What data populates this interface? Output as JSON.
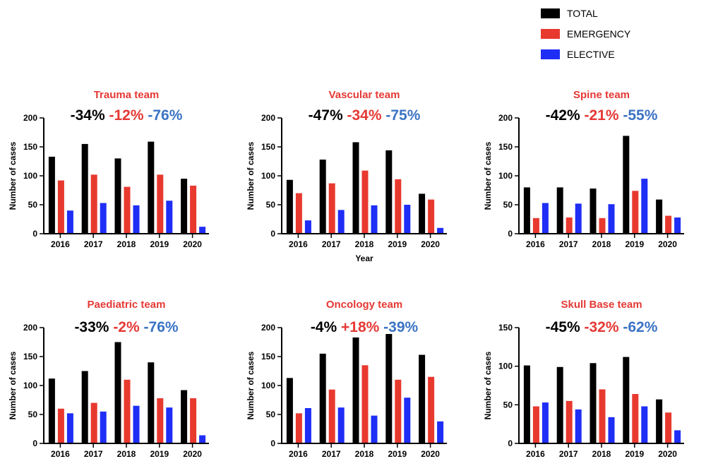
{
  "colors": {
    "total": "#000000",
    "emergency": "#e8392f",
    "elective": "#1f2ef5",
    "title": "#e53935",
    "pct_total": "#000000",
    "pct_emergency": "#e53935",
    "pct_elective": "#3b73c4"
  },
  "legend": {
    "items": [
      {
        "label": "TOTAL",
        "color": "#000000"
      },
      {
        "label": "EMERGENCY",
        "color": "#e8392f"
      },
      {
        "label": "ELECTIVE",
        "color": "#1f2ef5"
      }
    ],
    "placement": "top-right"
  },
  "chart_data": [
    {
      "type": "bar",
      "title": "Trauma team",
      "changes": [
        "-34%",
        "-12%",
        "-76%"
      ],
      "categories": [
        "2016",
        "2017",
        "2018",
        "2019",
        "2020"
      ],
      "series": [
        {
          "name": "TOTAL",
          "values": [
            133,
            155,
            130,
            159,
            95
          ]
        },
        {
          "name": "EMERGENCY",
          "values": [
            92,
            102,
            81,
            102,
            83
          ]
        },
        {
          "name": "ELECTIVE",
          "values": [
            40,
            53,
            49,
            57,
            12
          ]
        }
      ],
      "ylabel": "Number of cases",
      "xlabel": "",
      "ylim": [
        0,
        200
      ],
      "yticks": [
        0,
        50,
        100,
        150,
        200
      ]
    },
    {
      "type": "bar",
      "title": "Vascular team",
      "changes": [
        "-47%",
        "-34%",
        "-75%"
      ],
      "categories": [
        "2016",
        "2017",
        "2018",
        "2019",
        "2020"
      ],
      "series": [
        {
          "name": "TOTAL",
          "values": [
            93,
            128,
            158,
            144,
            69
          ]
        },
        {
          "name": "EMERGENCY",
          "values": [
            70,
            87,
            109,
            94,
            59
          ]
        },
        {
          "name": "ELECTIVE",
          "values": [
            23,
            41,
            49,
            50,
            10
          ]
        }
      ],
      "ylabel": "Number of cases",
      "xlabel": "Year",
      "ylim": [
        0,
        200
      ],
      "yticks": [
        0,
        50,
        100,
        150,
        200
      ]
    },
    {
      "type": "bar",
      "title": "Spine team",
      "changes": [
        "-42%",
        "-21%",
        "-55%"
      ],
      "categories": [
        "2016",
        "2017",
        "2018",
        "2019",
        "2020"
      ],
      "series": [
        {
          "name": "TOTAL",
          "values": [
            80,
            80,
            78,
            169,
            59
          ]
        },
        {
          "name": "EMERGENCY",
          "values": [
            27,
            28,
            27,
            74,
            31
          ]
        },
        {
          "name": "ELECTIVE",
          "values": [
            53,
            52,
            51,
            95,
            28
          ]
        }
      ],
      "ylabel": "Number of cases",
      "xlabel": "",
      "ylim": [
        0,
        200
      ],
      "yticks": [
        0,
        50,
        100,
        150,
        200
      ]
    },
    {
      "type": "bar",
      "title": "Paediatric team",
      "changes": [
        "-33%",
        "-2%",
        "-76%"
      ],
      "categories": [
        "2016",
        "2017",
        "2018",
        "2019",
        "2020"
      ],
      "series": [
        {
          "name": "TOTAL",
          "values": [
            112,
            125,
            175,
            140,
            92
          ]
        },
        {
          "name": "EMERGENCY",
          "values": [
            60,
            70,
            110,
            78,
            78
          ]
        },
        {
          "name": "ELECTIVE",
          "values": [
            52,
            55,
            65,
            62,
            14
          ]
        }
      ],
      "ylabel": "Number of cases",
      "xlabel": "",
      "ylim": [
        0,
        200
      ],
      "yticks": [
        0,
        50,
        100,
        150,
        200
      ]
    },
    {
      "type": "bar",
      "title": "Oncology team",
      "changes": [
        "-4%",
        "+18%",
        "-39%"
      ],
      "categories": [
        "2016",
        "2017",
        "2018",
        "2019",
        "2020"
      ],
      "series": [
        {
          "name": "TOTAL",
          "values": [
            113,
            155,
            183,
            189,
            153
          ]
        },
        {
          "name": "EMERGENCY",
          "values": [
            52,
            93,
            135,
            110,
            115
          ]
        },
        {
          "name": "ELECTIVE",
          "values": [
            61,
            62,
            48,
            79,
            38
          ]
        }
      ],
      "ylabel": "Number of cases",
      "xlabel": "",
      "ylim": [
        0,
        200
      ],
      "yticks": [
        0,
        50,
        100,
        150,
        200
      ]
    },
    {
      "type": "bar",
      "title": "Skull Base team",
      "changes": [
        "-45%",
        "-32%",
        "-62%"
      ],
      "categories": [
        "2016",
        "2017",
        "2018",
        "2019",
        "2020"
      ],
      "series": [
        {
          "name": "TOTAL",
          "values": [
            101,
            99,
            104,
            112,
            57
          ]
        },
        {
          "name": "EMERGENCY",
          "values": [
            48,
            55,
            70,
            64,
            40
          ]
        },
        {
          "name": "ELECTIVE",
          "values": [
            53,
            44,
            34,
            48,
            17
          ]
        }
      ],
      "ylabel": "Number of cases",
      "xlabel": "",
      "ylim": [
        0,
        150
      ],
      "yticks": [
        0,
        50,
        100,
        150
      ]
    }
  ]
}
